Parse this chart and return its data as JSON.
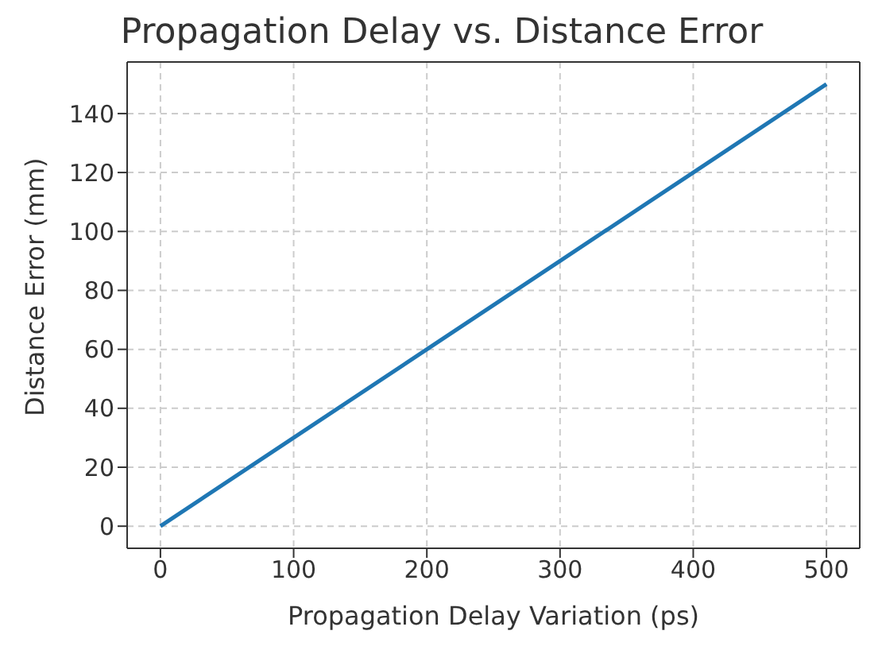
{
  "chart_data": {
    "type": "line",
    "title": "Propagation Delay vs. Distance Error",
    "xlabel": "Propagation Delay Variation (ps)",
    "ylabel": "Distance Error (mm)",
    "x": [
      0,
      100,
      200,
      300,
      400,
      500
    ],
    "series": [
      {
        "color": "#1f77b4",
        "values": [
          0,
          30,
          60,
          90,
          120,
          150
        ]
      }
    ],
    "xlim": [
      -25,
      525
    ],
    "xticks": [
      0,
      100,
      200,
      300,
      400,
      500
    ],
    "ylim": [
      -7.5,
      157.5
    ],
    "yticks": [
      0,
      20,
      40,
      60,
      80,
      100,
      120,
      140
    ],
    "grid": true,
    "marker": "none",
    "line_style": "solid"
  }
}
